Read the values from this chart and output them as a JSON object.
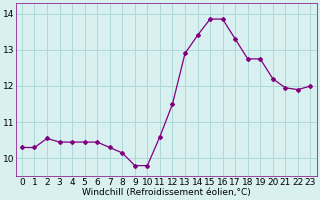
{
  "x": [
    0,
    1,
    2,
    3,
    4,
    5,
    6,
    7,
    8,
    9,
    10,
    11,
    12,
    13,
    14,
    15,
    16,
    17,
    18,
    19,
    20,
    21,
    22,
    23
  ],
  "y": [
    10.3,
    10.3,
    10.55,
    10.45,
    10.45,
    10.45,
    10.45,
    10.3,
    10.15,
    9.8,
    9.8,
    10.6,
    11.5,
    12.9,
    13.4,
    13.85,
    13.85,
    13.3,
    12.75,
    12.75,
    12.2,
    11.95,
    11.9,
    12.0
  ],
  "line_color": "#800080",
  "marker": "D",
  "marker_size": 2.0,
  "bg_color": "#d8f0f0",
  "grid_color": "#b0d8d8",
  "xlabel": "Windchill (Refroidissement éolien,°C)",
  "xlabel_fontsize": 6.5,
  "tick_fontsize": 6.5,
  "ylim": [
    9.5,
    14.3
  ],
  "yticks": [
    10,
    11,
    12,
    13,
    14
  ],
  "xticks": [
    0,
    1,
    2,
    3,
    4,
    5,
    6,
    7,
    8,
    9,
    10,
    11,
    12,
    13,
    14,
    15,
    16,
    17,
    18,
    19,
    20,
    21,
    22,
    23
  ]
}
